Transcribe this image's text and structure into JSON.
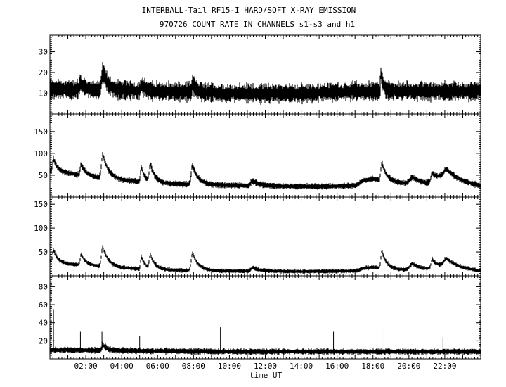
{
  "title_line1": "INTERBALL-Tail RF15-I HARD/SOFT X-RAY EMISSION",
  "title_line2": "970726  COUNT RATE IN CHANNELS s1-s3 and h1",
  "chart_data": {
    "type": "line",
    "xlabel": "time UT",
    "x_unit": "hours UT",
    "xlim": [
      0,
      24
    ],
    "x_ticks": [
      "02:00",
      "04:00",
      "06:00",
      "08:00",
      "10:00",
      "12:00",
      "14:00",
      "16:00",
      "18:00",
      "20:00",
      "22:00"
    ],
    "colors": {
      "line": "#000000",
      "axes": "#000000",
      "background": "#ffffff"
    },
    "grid": false,
    "panels": [
      {
        "channel": "s1",
        "ylim": [
          0,
          38
        ],
        "y_ticks": [
          10,
          20,
          30
        ],
        "baseline": [
          [
            0,
            12
          ],
          [
            6,
            11
          ],
          [
            10,
            10
          ],
          [
            14,
            10
          ],
          [
            17,
            11
          ],
          [
            20,
            11
          ],
          [
            24,
            11
          ]
        ],
        "noise_amp": 4,
        "peaks": [
          [
            2.95,
            21,
            0.12
          ],
          [
            1.7,
            15,
            0.1
          ],
          [
            5.1,
            14,
            0.1
          ],
          [
            7.95,
            15,
            0.08
          ],
          [
            18.45,
            20,
            0.06
          ]
        ],
        "spikes": []
      },
      {
        "channel": "s2",
        "ylim": [
          0,
          190
        ],
        "y_ticks": [
          50,
          100,
          150
        ],
        "baseline": [
          [
            0,
            60
          ],
          [
            1,
            55
          ],
          [
            2,
            48
          ],
          [
            4,
            38
          ],
          [
            6,
            32
          ],
          [
            8,
            28
          ],
          [
            10,
            27
          ],
          [
            12,
            25
          ],
          [
            15,
            24
          ],
          [
            17,
            26
          ],
          [
            17.5,
            38
          ],
          [
            18,
            42
          ],
          [
            19,
            35
          ],
          [
            20,
            30
          ],
          [
            21,
            28
          ],
          [
            22,
            50
          ],
          [
            23,
            35
          ],
          [
            24,
            25
          ]
        ],
        "noise_amp": 6,
        "peaks": [
          [
            0.2,
            88,
            0.1
          ],
          [
            1.75,
            75,
            0.12
          ],
          [
            2.95,
            97,
            0.15
          ],
          [
            5.1,
            68,
            0.1
          ],
          [
            5.6,
            72,
            0.12
          ],
          [
            7.95,
            73,
            0.15
          ],
          [
            11.3,
            37,
            0.2
          ],
          [
            18.5,
            78,
            0.12
          ],
          [
            20.2,
            45,
            0.3
          ],
          [
            21.3,
            52,
            0.12
          ],
          [
            22.1,
            62,
            0.25
          ]
        ],
        "spikes": []
      },
      {
        "channel": "s3",
        "ylim": [
          0,
          165
        ],
        "y_ticks": [
          50,
          100,
          150
        ],
        "baseline": [
          [
            0,
            30
          ],
          [
            1,
            25
          ],
          [
            2,
            22
          ],
          [
            4,
            16
          ],
          [
            6,
            13
          ],
          [
            8,
            11
          ],
          [
            10,
            10
          ],
          [
            14,
            9
          ],
          [
            17,
            10
          ],
          [
            17.5,
            16
          ],
          [
            18,
            18
          ],
          [
            19,
            14
          ],
          [
            20,
            12
          ],
          [
            21,
            11
          ],
          [
            22,
            22
          ],
          [
            23,
            15
          ],
          [
            24,
            10
          ]
        ],
        "noise_amp": 4,
        "peaks": [
          [
            0.2,
            55,
            0.1
          ],
          [
            1.75,
            45,
            0.12
          ],
          [
            2.95,
            60,
            0.15
          ],
          [
            5.1,
            40,
            0.1
          ],
          [
            5.6,
            42,
            0.12
          ],
          [
            7.95,
            48,
            0.15
          ],
          [
            11.3,
            17,
            0.2
          ],
          [
            18.5,
            52,
            0.12
          ],
          [
            20.2,
            25,
            0.3
          ],
          [
            21.3,
            32,
            0.12
          ],
          [
            22.1,
            35,
            0.25
          ]
        ],
        "spikes": []
      },
      {
        "channel": "h1",
        "ylim": [
          0,
          92
        ],
        "y_ticks": [
          20,
          40,
          60,
          80
        ],
        "baseline": [
          [
            0,
            10
          ],
          [
            5,
            9
          ],
          [
            10,
            8
          ],
          [
            15,
            8
          ],
          [
            20,
            8
          ],
          [
            24,
            8
          ]
        ],
        "noise_amp": 3,
        "peaks": [
          [
            2.95,
            16,
            0.1
          ]
        ],
        "spikes": [
          [
            0.2,
            55
          ],
          [
            1.7,
            30
          ],
          [
            2.9,
            30
          ],
          [
            5.0,
            25
          ],
          [
            9.5,
            35
          ],
          [
            15.8,
            30
          ],
          [
            18.5,
            36
          ],
          [
            21.9,
            24
          ]
        ]
      }
    ]
  }
}
